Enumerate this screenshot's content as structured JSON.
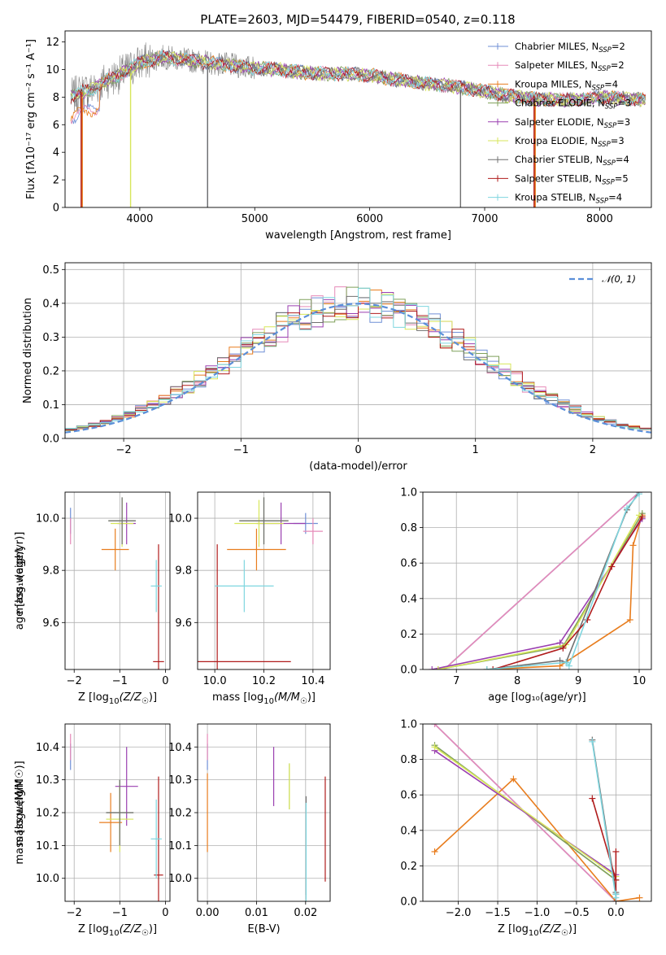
{
  "colors": {
    "Chabrier MILES": "#6f8fd6",
    "Salpeter MILES": "#e68ab8",
    "Kroupa MILES": "#e87d1e",
    "Chabrier ELODIE": "#7fa05a",
    "Salpeter ELODIE": "#9a3fb0",
    "Kroupa ELODIE": "#d7e65a",
    "Chabrier STELIB": "#707070",
    "Salpeter STELIB": "#b01c1c",
    "Kroupa STELIB": "#7fd6df"
  },
  "chart_data": [
    {
      "type": "line",
      "title": "PLATE=2603, MJD=54479, FIBERID=0540, z=0.118",
      "xlabel": "wavelength [Angstrom, rest frame]",
      "ylabel": "Flux [fλ10⁻¹⁷ erg cm⁻² s⁻¹ A⁻¹]",
      "xlim": [
        3350,
        8450
      ],
      "ylim": [
        0,
        12.8
      ],
      "xticks": [
        "4000",
        "5000",
        "6000",
        "7000",
        "8000"
      ],
      "yticks": [
        "0",
        "2",
        "4",
        "6",
        "8",
        "10",
        "12"
      ],
      "grid": false,
      "legend": "top-right",
      "legend_entries": [
        {
          "base": "Chabrier MILES, N",
          "sub": "SSP",
          "suf": "=2"
        },
        {
          "base": "Salpeter MILES, N",
          "sub": "SSP",
          "suf": "=2"
        },
        {
          "base": "Kroupa MILES, N",
          "sub": "SSP",
          "suf": "=4"
        },
        {
          "base": "Chabrier ELODIE, N",
          "sub": "SSP",
          "suf": "=3"
        },
        {
          "base": "Salpeter ELODIE, N",
          "sub": "SSP",
          "suf": "=3"
        },
        {
          "base": "Kroupa ELODIE, N",
          "sub": "SSP",
          "suf": "=3"
        },
        {
          "base": "Chabrier STELIB, N",
          "sub": "SSP",
          "suf": "=4"
        },
        {
          "base": "Salpeter STELIB, N",
          "sub": "SSP",
          "suf": "=5"
        },
        {
          "base": "Kroupa STELIB, N",
          "sub": "SSP",
          "suf": "=4"
        }
      ],
      "continuum": [
        [
          3400,
          8.0
        ],
        [
          3500,
          8.4
        ],
        [
          3600,
          8.6
        ],
        [
          3700,
          9.2
        ],
        [
          3800,
          9.5
        ],
        [
          3900,
          10.0
        ],
        [
          4000,
          10.5
        ],
        [
          4200,
          10.9
        ],
        [
          4400,
          10.7
        ],
        [
          4600,
          10.5
        ],
        [
          4800,
          10.3
        ],
        [
          5000,
          10.1
        ],
        [
          5200,
          10.0
        ],
        [
          5400,
          9.8
        ],
        [
          5600,
          9.7
        ],
        [
          5800,
          9.7
        ],
        [
          6000,
          9.6
        ],
        [
          6200,
          9.3
        ],
        [
          6400,
          9.1
        ],
        [
          6600,
          8.9
        ],
        [
          6800,
          8.7
        ],
        [
          7000,
          8.4
        ],
        [
          7200,
          8.1
        ],
        [
          7400,
          7.9
        ],
        [
          7600,
          7.8
        ],
        [
          7800,
          7.8
        ],
        [
          8000,
          8.0
        ],
        [
          8200,
          7.9
        ],
        [
          8400,
          7.8
        ]
      ]
    },
    {
      "type": "line",
      "xlabel": "(data-model)/error",
      "ylabel": "Normed distribution",
      "xlim": [
        -2.5,
        2.5
      ],
      "ylim": [
        0,
        0.52
      ],
      "xticks": [
        "-2",
        "-1",
        "0",
        "1",
        "2"
      ],
      "yticks": [
        "0.0",
        "0.1",
        "0.2",
        "0.3",
        "0.4",
        "0.5"
      ],
      "grid": true,
      "legend": "top-right",
      "legend_label": "𝒩(0, 1)",
      "bin_width": 0.1
    },
    {
      "type": "scatter",
      "xlabel_base": "Z [log",
      "xlabel_sub": "10",
      "xlabel_math": "(Z/Z",
      "xlabel_sub2": "☉",
      "xlabel_end": ")]",
      "ylabel": "age [log₁₀(age/yr)]",
      "xlim": [
        -2.2,
        0.1
      ],
      "ylim": [
        9.42,
        10.1
      ],
      "xticks": [
        "-2",
        "-1",
        "0"
      ],
      "yticks": [
        "9.6",
        "9.8",
        "10.0"
      ],
      "grid": true,
      "points": [
        {
          "m": "Chabrier MILES",
          "x": -2.08,
          "y": 9.99,
          "xe": 0.0,
          "ye": 0.05
        },
        {
          "m": "Salpeter MILES",
          "x": -2.08,
          "y": 9.95,
          "xe": 0.0,
          "ye": 0.05
        },
        {
          "m": "Kroupa MILES",
          "x": -1.1,
          "y": 9.88,
          "xe": 0.3,
          "ye": 0.08
        },
        {
          "m": "Chabrier ELODIE",
          "x": -0.95,
          "y": 9.99,
          "xe": 0.3,
          "ye": 0.09
        },
        {
          "m": "Salpeter ELODIE",
          "x": -0.85,
          "y": 9.98,
          "xe": 0.2,
          "ye": 0.08
        },
        {
          "m": "Kroupa ELODIE",
          "x": -0.95,
          "y": 9.98,
          "xe": 0.25,
          "ye": 0.09
        },
        {
          "m": "Chabrier STELIB",
          "x": -0.95,
          "y": 9.99,
          "xe": 0.3,
          "ye": 0.09
        },
        {
          "m": "Salpeter STELIB",
          "x": -0.15,
          "y": 9.45,
          "xe": 0.12,
          "ye": 0.45
        },
        {
          "m": "Kroupa STELIB",
          "x": -0.2,
          "y": 9.74,
          "xe": 0.12,
          "ye": 0.1
        }
      ]
    },
    {
      "type": "scatter",
      "xlabel_base": "mass [log",
      "xlabel_sub": "10",
      "xlabel_math": "(M/M",
      "xlabel_sub2": "☉",
      "xlabel_end": ")]",
      "xlim": [
        9.93,
        10.47
      ],
      "ylim": [
        9.42,
        10.1
      ],
      "xticks": [
        "10.0",
        "10.2",
        "10.4"
      ],
      "yticks": [
        "9.6",
        "9.8",
        "10.0"
      ],
      "grid": true,
      "points": [
        {
          "m": "Chabrier MILES",
          "x": 10.37,
          "y": 9.98,
          "xe": 0.05,
          "ye": 0.04
        },
        {
          "m": "Salpeter MILES",
          "x": 10.4,
          "y": 9.95,
          "xe": 0.04,
          "ye": 0.05
        },
        {
          "m": "Kroupa MILES",
          "x": 10.17,
          "y": 9.88,
          "xe": 0.12,
          "ye": 0.08
        },
        {
          "m": "Chabrier ELODIE",
          "x": 10.2,
          "y": 9.99,
          "xe": 0.1,
          "ye": 0.09
        },
        {
          "m": "Salpeter ELODIE",
          "x": 10.27,
          "y": 9.98,
          "xe": 0.1,
          "ye": 0.08
        },
        {
          "m": "Kroupa ELODIE",
          "x": 10.18,
          "y": 9.98,
          "xe": 0.1,
          "ye": 0.09
        },
        {
          "m": "Chabrier STELIB",
          "x": 10.2,
          "y": 9.99,
          "xe": 0.1,
          "ye": 0.09
        },
        {
          "m": "Salpeter STELIB",
          "x": 10.01,
          "y": 9.45,
          "xe": 0.3,
          "ye": 0.45
        },
        {
          "m": "Kroupa STELIB",
          "x": 10.12,
          "y": 9.74,
          "xe": 0.12,
          "ye": 0.1
        }
      ]
    },
    {
      "type": "line",
      "xlabel": "age [log₁₀(age/yr)]",
      "ylabel": "mass weight",
      "xlim": [
        6.45,
        10.2
      ],
      "ylim": [
        0,
        1.0
      ],
      "xticks": [
        "7",
        "8",
        "9",
        "10"
      ],
      "yticks": [
        "0.0",
        "0.2",
        "0.4",
        "0.6",
        "0.8",
        "1.0"
      ],
      "grid": true,
      "series": [
        {
          "m": "Chabrier MILES",
          "x": [
            6.8,
            10.0
          ],
          "y": [
            0.0,
            1.0
          ]
        },
        {
          "m": "Salpeter MILES",
          "x": [
            6.8,
            10.0
          ],
          "y": [
            0.0,
            1.0
          ]
        },
        {
          "m": "Kroupa MILES",
          "x": [
            7.5,
            8.7,
            9.85,
            9.9,
            10.05
          ],
          "y": [
            0.0,
            0.02,
            0.28,
            0.7,
            0.87
          ]
        },
        {
          "m": "Chabrier ELODIE",
          "x": [
            6.7,
            8.75,
            10.05
          ],
          "y": [
            0.0,
            0.13,
            0.88
          ]
        },
        {
          "m": "Salpeter ELODIE",
          "x": [
            6.6,
            8.7,
            10.05
          ],
          "y": [
            0.0,
            0.15,
            0.85
          ]
        },
        {
          "m": "Kroupa ELODIE",
          "x": [
            6.7,
            8.8,
            10.0
          ],
          "y": [
            0.0,
            0.14,
            0.87
          ]
        },
        {
          "m": "Chabrier STELIB",
          "x": [
            7.5,
            8.7,
            8.8,
            9.8,
            10.0
          ],
          "y": [
            0.0,
            0.05,
            0.04,
            0.9,
            1.0
          ]
        },
        {
          "m": "Salpeter STELIB",
          "x": [
            7.6,
            8.75,
            9.15,
            9.55,
            10.05
          ],
          "y": [
            0.0,
            0.12,
            0.28,
            0.58,
            0.86
          ]
        },
        {
          "m": "Kroupa STELIB",
          "x": [
            7.5,
            8.8,
            8.85,
            9.8,
            10.0
          ],
          "y": [
            0.0,
            0.04,
            0.02,
            0.91,
            0.99
          ]
        }
      ]
    },
    {
      "type": "scatter",
      "xlabel_base": "Z [log",
      "xlabel_sub": "10",
      "xlabel_math": "(Z/Z",
      "xlabel_sub2": "☉",
      "xlabel_end": ")]",
      "ylabel": "mass [log₁₀(M/M☉)]",
      "xlim": [
        -2.2,
        0.1
      ],
      "ylim": [
        9.93,
        10.47
      ],
      "xticks": [
        "-2",
        "-1",
        "0"
      ],
      "yticks": [
        "10.0",
        "10.1",
        "10.2",
        "10.3",
        "10.4"
      ],
      "grid": true,
      "points": [
        {
          "m": "Chabrier MILES",
          "x": -2.08,
          "y": 10.37,
          "xe": 0.0,
          "ye": 0.04
        },
        {
          "m": "Salpeter MILES",
          "x": -2.08,
          "y": 10.4,
          "xe": 0.0,
          "ye": 0.04
        },
        {
          "m": "Kroupa MILES",
          "x": -1.2,
          "y": 10.17,
          "xe": 0.25,
          "ye": 0.09
        },
        {
          "m": "Chabrier ELODIE",
          "x": -1.0,
          "y": 10.2,
          "xe": 0.3,
          "ye": 0.1
        },
        {
          "m": "Salpeter ELODIE",
          "x": -0.85,
          "y": 10.28,
          "xe": 0.25,
          "ye": 0.12
        },
        {
          "m": "Kroupa ELODIE",
          "x": -1.0,
          "y": 10.18,
          "xe": 0.3,
          "ye": 0.1
        },
        {
          "m": "Chabrier STELIB",
          "x": -1.0,
          "y": 10.2,
          "xe": 0.3,
          "ye": 0.1
        },
        {
          "m": "Salpeter STELIB",
          "x": -0.15,
          "y": 10.01,
          "xe": 0.1,
          "ye": 0.3
        },
        {
          "m": "Kroupa STELIB",
          "x": -0.2,
          "y": 10.12,
          "xe": 0.12,
          "ye": 0.12
        }
      ]
    },
    {
      "type": "scatter",
      "xlabel": "E(B-V)",
      "xlim": [
        -0.002,
        0.025
      ],
      "ylim": [
        9.93,
        10.47
      ],
      "xticks": [
        "0.00",
        "0.01",
        "0.02"
      ],
      "yticks": [
        "10.0",
        "10.1",
        "10.2",
        "10.3",
        "10.4"
      ],
      "grid": true,
      "points": [
        {
          "m": "Chabrier MILES",
          "x": 0.0,
          "y": 10.37,
          "ye": 0.04
        },
        {
          "m": "Salpeter MILES",
          "x": 0.0,
          "y": 10.4,
          "ye": 0.04
        },
        {
          "m": "Kroupa MILES",
          "x": 0.0,
          "y": 10.2,
          "ye": 0.12
        },
        {
          "m": "Chabrier ELODIE",
          "x": 0.0167,
          "y": 10.28,
          "ye": 0.07
        },
        {
          "m": "Salpeter ELODIE",
          "x": 0.0135,
          "y": 10.31,
          "ye": 0.09
        },
        {
          "m": "Kroupa ELODIE",
          "x": 0.0167,
          "y": 10.28,
          "ye": 0.07
        },
        {
          "m": "Chabrier STELIB",
          "x": 0.0201,
          "y": 10.1,
          "ye": 0.15
        },
        {
          "m": "Salpeter STELIB",
          "x": 0.024,
          "y": 10.15,
          "ye": 0.16
        },
        {
          "m": "Kroupa STELIB",
          "x": 0.0201,
          "y": 10.08,
          "ye": 0.15
        }
      ]
    },
    {
      "type": "line",
      "xlabel_base": "Z [log",
      "xlabel_sub": "10",
      "xlabel_math": "(Z/Z",
      "xlabel_sub2": "☉",
      "xlabel_end": ")]",
      "ylabel": "mass weight",
      "xlim": [
        -2.45,
        0.45
      ],
      "ylim": [
        0,
        1.0
      ],
      "xticks": [
        "-2.0",
        "-1.5",
        "-1.0",
        "-0.5",
        "0.0"
      ],
      "yticks": [
        "0.0",
        "0.2",
        "0.4",
        "0.6",
        "0.8",
        "1.0"
      ],
      "grid": true,
      "series": [
        {
          "m": "Chabrier MILES",
          "x": [
            -2.3,
            0.0
          ],
          "y": [
            1.0,
            0.0
          ]
        },
        {
          "m": "Salpeter MILES",
          "x": [
            -2.3,
            0.0
          ],
          "y": [
            1.0,
            0.0
          ]
        },
        {
          "m": "Kroupa MILES",
          "x": [
            -2.3,
            -1.3,
            0.0,
            0.3
          ],
          "y": [
            0.28,
            0.69,
            0.0,
            0.02
          ]
        },
        {
          "m": "Chabrier ELODIE",
          "x": [
            -2.3,
            0.0
          ],
          "y": [
            0.88,
            0.12
          ]
        },
        {
          "m": "Salpeter ELODIE",
          "x": [
            -2.3,
            0.0
          ],
          "y": [
            0.85,
            0.15
          ]
        },
        {
          "m": "Kroupa ELODIE",
          "x": [
            -2.3,
            0.0
          ],
          "y": [
            0.87,
            0.14
          ]
        },
        {
          "m": "Chabrier STELIB",
          "x": [
            -0.3,
            0.0,
            0.0
          ],
          "y": [
            0.91,
            0.05,
            0.04
          ]
        },
        {
          "m": "Salpeter STELIB",
          "x": [
            -0.3,
            0.0,
            0.0,
            0.0
          ],
          "y": [
            0.58,
            0.12,
            0.28,
            0.0
          ]
        },
        {
          "m": "Kroupa STELIB",
          "x": [
            -0.3,
            0.0,
            0.0
          ],
          "y": [
            0.9,
            0.02,
            0.04
          ]
        }
      ]
    }
  ]
}
